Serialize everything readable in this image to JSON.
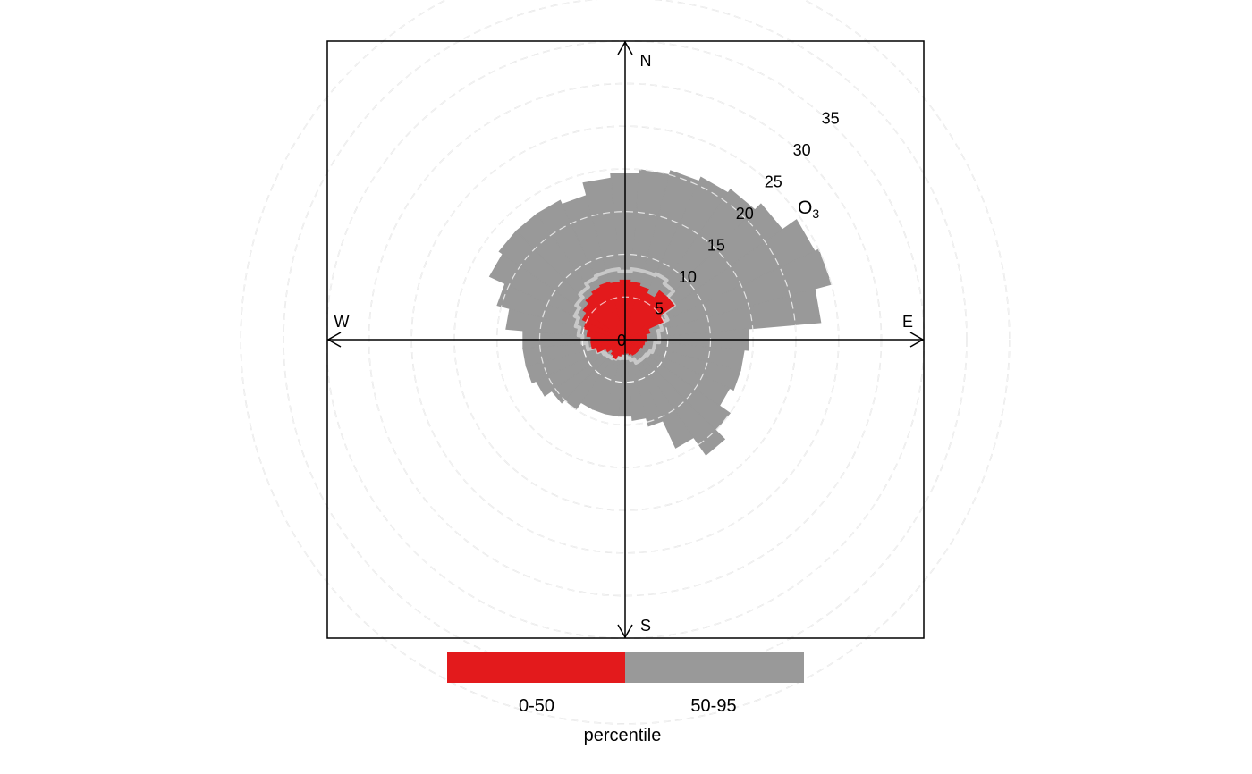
{
  "chart_data": {
    "type": "polar_percentile_rose",
    "pollutant": {
      "base": "O",
      "subscript": "3"
    },
    "directions": {
      "north": "N",
      "east": "E",
      "south": "S",
      "west": "W"
    },
    "radial_labels": [
      "0",
      "5",
      "10",
      "15",
      "20",
      "25",
      "30",
      "35"
    ],
    "radial_ticks": [
      0,
      5,
      10,
      15,
      20,
      25,
      30,
      35
    ],
    "grid_rings": [
      5,
      10,
      15,
      20,
      25,
      30,
      35,
      40,
      45
    ],
    "grid": "dashed circles",
    "angle_bin_deg": 10,
    "bin_directions_deg": [
      0,
      10,
      20,
      30,
      40,
      50,
      60,
      70,
      80,
      90,
      100,
      110,
      120,
      130,
      140,
      150,
      160,
      170,
      180,
      190,
      200,
      210,
      220,
      230,
      240,
      250,
      260,
      270,
      280,
      290,
      300,
      310,
      320,
      330,
      340,
      350
    ],
    "series": [
      {
        "name": "50-95",
        "color": "#999999",
        "values": [
          19.5,
          20.0,
          20.5,
          21.0,
          21.5,
          22.5,
          24.5,
          25.0,
          23.0,
          14.5,
          14.0,
          14.0,
          13.5,
          15.0,
          16.5,
          14.0,
          10.5,
          9.5,
          9.0,
          9.0,
          9.0,
          9.0,
          10.0,
          10.5,
          11.5,
          12.0,
          12.0,
          12.0,
          14.0,
          15.5,
          17.5,
          18.0,
          18.0,
          18.0,
          17.5,
          19.0
        ]
      },
      {
        "name": "0-50",
        "color": "#e31a1c",
        "values": [
          7.0,
          6.8,
          6.5,
          6.0,
          7.0,
          7.0,
          5.0,
          3.0,
          2.5,
          2.5,
          2.3,
          2.2,
          2.0,
          2.0,
          2.0,
          2.0,
          1.8,
          1.6,
          1.5,
          1.7,
          2.0,
          2.5,
          2.3,
          2.0,
          2.5,
          3.5,
          4.0,
          4.0,
          4.5,
          5.0,
          5.5,
          6.0,
          6.5,
          6.8,
          7.0,
          6.8
        ]
      },
      {
        "name": "95 percentile outline",
        "color": "#c8c8c8",
        "values": [
          8.0,
          8.3,
          8.3,
          8.5,
          8.0,
          7.0,
          5.5,
          4.5,
          4.0,
          4.0,
          3.5,
          3.5,
          3.2,
          3.0,
          3.0,
          3.0,
          2.5,
          2.2,
          2.0,
          2.2,
          2.3,
          2.5,
          2.7,
          2.8,
          3.0,
          3.5,
          4.5,
          5.0,
          5.5,
          6.0,
          6.5,
          7.0,
          7.5,
          8.0,
          8.2,
          8.3
        ]
      }
    ],
    "legend": {
      "title": "percentile",
      "placement": "bottom",
      "items": [
        {
          "label": "0-50",
          "color": "#e31a1c"
        },
        {
          "label": "50-95",
          "color": "#999999"
        }
      ]
    }
  }
}
